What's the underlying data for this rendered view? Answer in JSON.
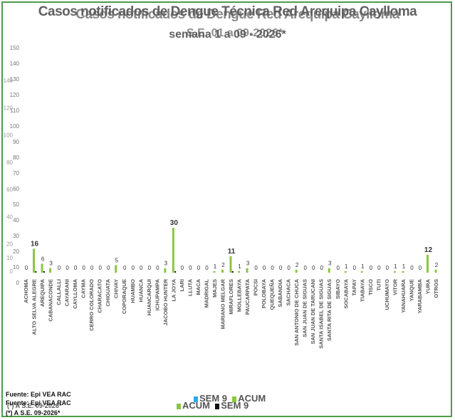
{
  "title_line1": "Casos notificados de Dengue Técnica Red Arequipa Caylloma",
  "title_line1_overlap": "Casos notificados de Dengue Red Arequipa Caylloma",
  "title_line2": "semana 1 a 09 - 2026*",
  "title_line2_overlap": "S.E. 01 a 09-2026*",
  "source1": "Fuente: Epi VEA RAC",
  "source2": "Fuente: Epi VEA RAC",
  "source3": "(*) A S.E. 09-2026*",
  "source3_overlap": "(*) A S.E. 09-2026*",
  "colors": {
    "acum": "#8cc63f",
    "sem": "#111111",
    "sem_alt": "#29abe2",
    "border": "#4f9a48"
  },
  "legend": {
    "row1": [
      {
        "label": "SEM 9",
        "color": "#29abe2"
      },
      {
        "label": "ACUM",
        "color": "#8cc63f"
      }
    ],
    "row2": [
      {
        "label": "ACUM",
        "color": "#8cc63f"
      },
      {
        "label": "SEM 9",
        "color": "#111111"
      }
    ]
  },
  "chart_data": {
    "type": "bar",
    "ylim": [
      0,
      150
    ],
    "yticks_a": [
      0,
      10,
      20,
      30,
      40,
      50,
      60,
      70,
      80,
      90,
      100,
      110,
      120,
      130,
      140,
      150
    ],
    "yticks_b": [
      0,
      10,
      20,
      40,
      60,
      80,
      100,
      120,
      140
    ],
    "grid": false,
    "legend_position": "bottom",
    "series": [
      {
        "name": "ACUM"
      },
      {
        "name": "SEM 9"
      }
    ],
    "categories": [
      "ACHOMA",
      "ALTO SELVA ALEGRE",
      "AREQUIPA",
      "CABANACONDE",
      "CALLALLI",
      "CAYARANI",
      "CAYLLOMA",
      "CAYMA",
      "CERRO COLORADO",
      "CHARACATO",
      "CHIGUATA",
      "CHIVAY",
      "COPORAQUE",
      "HUAMBO",
      "HUANCA",
      "HUANCARQUI",
      "ICHUPAMPA",
      "JACOBO HUNTER",
      "LA JOYA",
      "LARI",
      "LLUTA",
      "MACA",
      "MADRIGAL",
      "MAJES",
      "MARIANO MELGAR",
      "MIRAFLORES",
      "MOLLEBAYA",
      "PAUCARPATA",
      "POCSI",
      "POLOBAYA",
      "QUEQUEÑA",
      "SABANDIA",
      "SACHACA",
      "SAN ANTONIO DE CHUCA",
      "SAN JUAN DE SIGUAS",
      "SAN JUAN DE TARUCANI",
      "SANTA ISABEL DE SIGUAS",
      "SANTA RITA DE SIGUAS",
      "SIBAYO",
      "SOCABAYA",
      "TAPAY",
      "TIABAYA",
      "TISCO",
      "TUTI",
      "UCHUMAYO",
      "VITOR",
      "YANAHUARA",
      "YANQUE",
      "YARABAMBA",
      "YURA",
      "OTROS"
    ],
    "acum": [
      0,
      16,
      6,
      3,
      0,
      0,
      0,
      0,
      0,
      0,
      0,
      5,
      0,
      0,
      0,
      0,
      0,
      3,
      30,
      0,
      0,
      0,
      0,
      1,
      2,
      11,
      1,
      3,
      0,
      0,
      0,
      0,
      0,
      2,
      0,
      0,
      0,
      3,
      0,
      1,
      0,
      1,
      0,
      0,
      0,
      1,
      1,
      0,
      0,
      12,
      2
    ],
    "sem_9": [
      0,
      1,
      1,
      0,
      0,
      0,
      0,
      0,
      0,
      0,
      0,
      0,
      0,
      0,
      0,
      0,
      0,
      0,
      1,
      0,
      0,
      0,
      0,
      0,
      0,
      1,
      0,
      0,
      0,
      0,
      0,
      0,
      0,
      0,
      0,
      0,
      0,
      0,
      0,
      0,
      0,
      0,
      0,
      0,
      0,
      0,
      0,
      0,
      0,
      0,
      0
    ]
  }
}
